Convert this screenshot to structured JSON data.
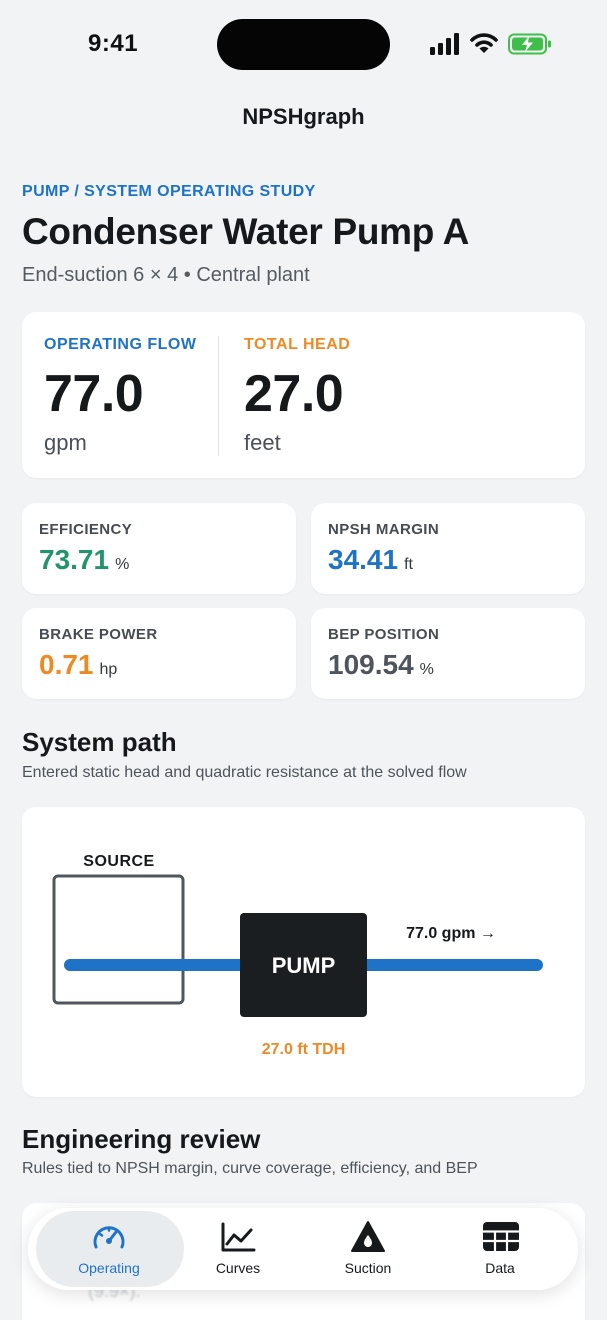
{
  "status_bar": {
    "time": "9:41"
  },
  "app": {
    "title": "NPSHgraph"
  },
  "header": {
    "eyebrow": "PUMP / SYSTEM OPERATING STUDY",
    "title": "Condenser Water Pump A",
    "subtitle": "End-suction 6 × 4 • Central plant"
  },
  "hero": {
    "flow": {
      "label": "OPERATING FLOW",
      "value": "77.0",
      "unit": "gpm"
    },
    "head": {
      "label": "TOTAL HEAD",
      "value": "27.0",
      "unit": "feet"
    }
  },
  "metrics": [
    {
      "label": "EFFICIENCY",
      "value": "73.71",
      "unit": "%",
      "color": "#23946b"
    },
    {
      "label": "NPSH MARGIN",
      "value": "34.41",
      "unit": "ft",
      "color": "#1f73c7"
    },
    {
      "label": "BRAKE POWER",
      "value": "0.71",
      "unit": "hp",
      "color": "#ee8a23"
    },
    {
      "label": "BEP POSITION",
      "value": "109.54",
      "unit": "%",
      "color": "#4e555c"
    }
  ],
  "system_path": {
    "title": "System path",
    "subtitle": "Entered static head and quadratic resistance at the solved flow",
    "source_label": "SOURCE",
    "pump_label": "PUMP",
    "flow_label": "77.0 gpm →",
    "tdh_label": "27.0 ft TDH"
  },
  "review": {
    "title": "Engineering review",
    "subtitle": "Rules tied to NPSH margin, curve coverage, efficiency, and BEP",
    "ghost_line": "(9.9×)."
  },
  "tabs": [
    {
      "label": "Operating",
      "icon": "speedometer-icon",
      "active": true
    },
    {
      "label": "Curves",
      "icon": "chart-line-icon",
      "active": false
    },
    {
      "label": "Suction",
      "icon": "drop-triangle-icon",
      "active": false
    },
    {
      "label": "Data",
      "icon": "table-grid-icon",
      "active": false
    }
  ],
  "colors": {
    "accent_blue": "#1f73c7",
    "accent_orange": "#ee8a23",
    "accent_green": "#23946b"
  }
}
